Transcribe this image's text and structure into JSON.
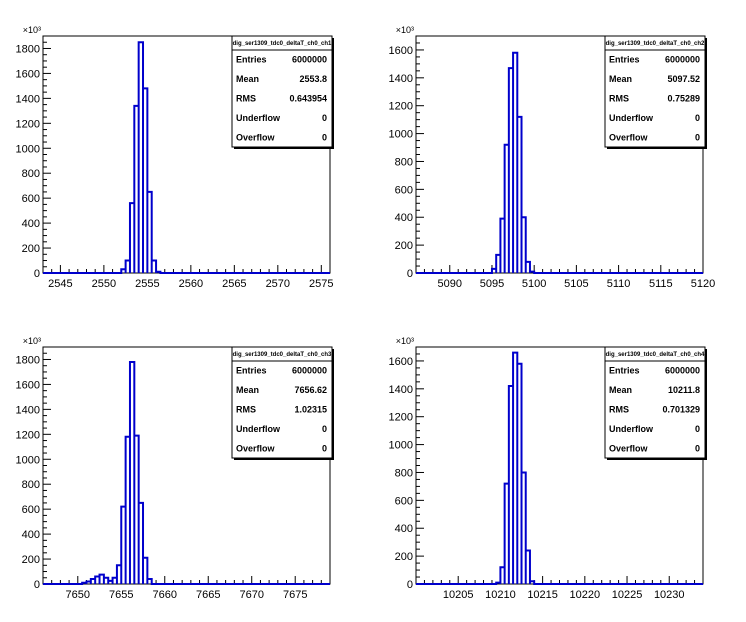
{
  "chart_data": [
    {
      "type": "bar",
      "histogram": true,
      "stats_title": "dig_ser1309_tdc0_deltaT_ch0_ch1",
      "stats": [
        {
          "label": "Entries",
          "value": "6000000"
        },
        {
          "label": "Mean",
          "value": "2553.8"
        },
        {
          "label": "RMS",
          "value": "0.643954"
        },
        {
          "label": "Underflow",
          "value": "0"
        },
        {
          "label": "Overflow",
          "value": "0"
        }
      ],
      "xlim": [
        2543,
        2576
      ],
      "ylim": [
        0,
        1900
      ],
      "y_exponent": "×10³",
      "x_ticks": [
        2545,
        2550,
        2555,
        2560,
        2565,
        2570,
        2575
      ],
      "y_ticks": [
        0,
        200,
        400,
        600,
        800,
        1000,
        1200,
        1400,
        1600,
        1800
      ],
      "bin_width": 0.5,
      "bins": [
        {
          "x": 2552.0,
          "y": 30
        },
        {
          "x": 2552.5,
          "y": 100
        },
        {
          "x": 2553.0,
          "y": 560
        },
        {
          "x": 2553.5,
          "y": 1340
        },
        {
          "x": 2554.0,
          "y": 1850
        },
        {
          "x": 2554.5,
          "y": 1480
        },
        {
          "x": 2555.0,
          "y": 650
        },
        {
          "x": 2555.5,
          "y": 100
        },
        {
          "x": 2556.0,
          "y": 10
        }
      ]
    },
    {
      "type": "bar",
      "histogram": true,
      "stats_title": "dig_ser1309_tdc0_deltaT_ch0_ch2",
      "stats": [
        {
          "label": "Entries",
          "value": "6000000"
        },
        {
          "label": "Mean",
          "value": "5097.52"
        },
        {
          "label": "RMS",
          "value": "0.75289"
        },
        {
          "label": "Underflow",
          "value": "0"
        },
        {
          "label": "Overflow",
          "value": "0"
        }
      ],
      "xlim": [
        5086,
        5120
      ],
      "ylim": [
        0,
        1700
      ],
      "y_exponent": "×10³",
      "x_ticks": [
        5090,
        5095,
        5100,
        5105,
        5110,
        5115,
        5120
      ],
      "y_ticks": [
        0,
        200,
        400,
        600,
        800,
        1000,
        1200,
        1400,
        1600
      ],
      "bin_width": 0.5,
      "bins": [
        {
          "x": 5095.0,
          "y": 30
        },
        {
          "x": 5095.5,
          "y": 130
        },
        {
          "x": 5096.0,
          "y": 390
        },
        {
          "x": 5096.5,
          "y": 920
        },
        {
          "x": 5097.0,
          "y": 1470
        },
        {
          "x": 5097.5,
          "y": 1580
        },
        {
          "x": 5098.0,
          "y": 1120
        },
        {
          "x": 5098.5,
          "y": 400
        },
        {
          "x": 5099.0,
          "y": 80
        },
        {
          "x": 5099.5,
          "y": 10
        }
      ]
    },
    {
      "type": "bar",
      "histogram": true,
      "stats_title": "dig_ser1309_tdc0_deltaT_ch0_ch3",
      "stats": [
        {
          "label": "Entries",
          "value": "6000000"
        },
        {
          "label": "Mean",
          "value": "7656.62"
        },
        {
          "label": "RMS",
          "value": "1.02315"
        },
        {
          "label": "Underflow",
          "value": "0"
        },
        {
          "label": "Overflow",
          "value": "0"
        }
      ],
      "xlim": [
        7646,
        7679
      ],
      "ylim": [
        0,
        1900
      ],
      "y_exponent": "×10³",
      "x_ticks": [
        7650,
        7655,
        7660,
        7665,
        7670,
        7675
      ],
      "y_ticks": [
        0,
        200,
        400,
        600,
        800,
        1000,
        1200,
        1400,
        1600,
        1800
      ],
      "bin_width": 0.5,
      "bins": [
        {
          "x": 7650.5,
          "y": 10
        },
        {
          "x": 7651.0,
          "y": 20
        },
        {
          "x": 7651.5,
          "y": 40
        },
        {
          "x": 7652.0,
          "y": 60
        },
        {
          "x": 7652.5,
          "y": 75
        },
        {
          "x": 7653.0,
          "y": 50
        },
        {
          "x": 7653.5,
          "y": 25
        },
        {
          "x": 7654.0,
          "y": 50
        },
        {
          "x": 7654.5,
          "y": 150
        },
        {
          "x": 7655.0,
          "y": 620
        },
        {
          "x": 7655.5,
          "y": 1180
        },
        {
          "x": 7656.0,
          "y": 1780
        },
        {
          "x": 7656.5,
          "y": 1190
        },
        {
          "x": 7657.0,
          "y": 650
        },
        {
          "x": 7657.5,
          "y": 210
        },
        {
          "x": 7658.0,
          "y": 40
        }
      ]
    },
    {
      "type": "bar",
      "histogram": true,
      "stats_title": "dig_ser1309_tdc0_deltaT_ch0_ch4",
      "stats": [
        {
          "label": "Entries",
          "value": "6000000"
        },
        {
          "label": "Mean",
          "value": "10211.8"
        },
        {
          "label": "RMS",
          "value": "0.701329"
        },
        {
          "label": "Underflow",
          "value": "0"
        },
        {
          "label": "Overflow",
          "value": "0"
        }
      ],
      "xlim": [
        10200,
        10234
      ],
      "ylim": [
        0,
        1700
      ],
      "y_exponent": "×10³",
      "x_ticks": [
        10205,
        10210,
        10215,
        10220,
        10225,
        10230
      ],
      "y_ticks": [
        0,
        200,
        400,
        600,
        800,
        1000,
        1200,
        1400,
        1600
      ],
      "bin_width": 0.5,
      "bins": [
        {
          "x": 10209.5,
          "y": 10
        },
        {
          "x": 10210.0,
          "y": 120
        },
        {
          "x": 10210.5,
          "y": 720
        },
        {
          "x": 10211.0,
          "y": 1420
        },
        {
          "x": 10211.5,
          "y": 1660
        },
        {
          "x": 10212.0,
          "y": 1580
        },
        {
          "x": 10212.5,
          "y": 800
        },
        {
          "x": 10213.0,
          "y": 240
        },
        {
          "x": 10213.5,
          "y": 20
        }
      ]
    }
  ]
}
